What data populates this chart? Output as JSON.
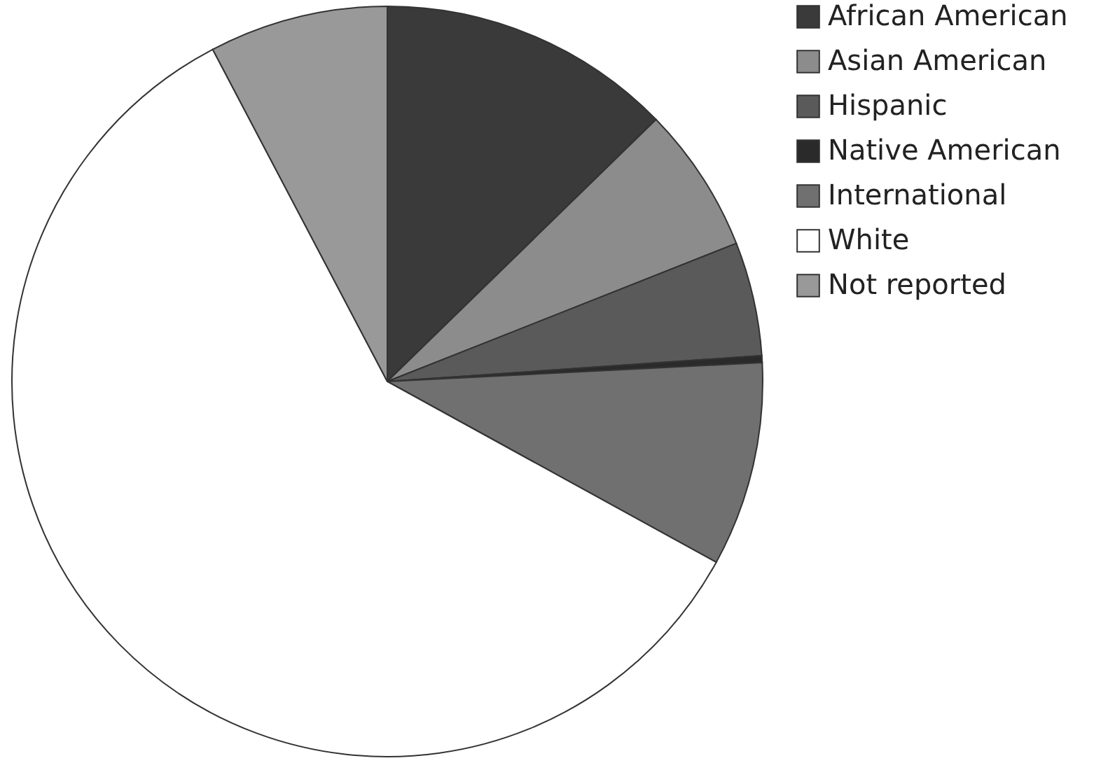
{
  "chart_data": {
    "type": "pie",
    "categories": [
      "African American",
      "Asian American",
      "Hispanic",
      "Native American",
      "International",
      "White",
      "Not reported"
    ],
    "values": [
      12.7,
      6.3,
      4.9,
      0.3,
      8.8,
      59.3,
      7.7
    ],
    "colors": [
      "#3a3a3a",
      "#8c8c8c",
      "#5a5a5a",
      "#2a2a2a",
      "#707070",
      "#ffffff",
      "#999999"
    ],
    "legend": "right"
  }
}
